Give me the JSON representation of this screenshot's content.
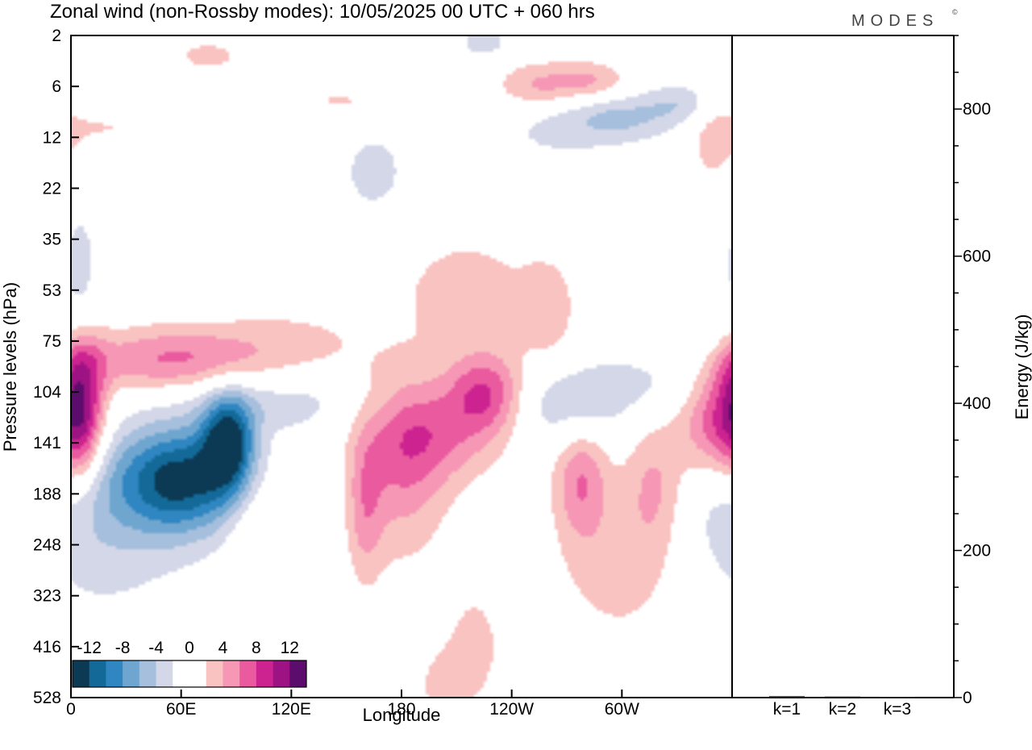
{
  "chart_data": {
    "type": "heatmap",
    "title": "Zonal wind (non-Rossby modes):  10/05/2025  00 UTC  + 060 hrs",
    "brand": "MODES",
    "brand_mark": "©",
    "xlabel": "Longitude",
    "ylabel": "Pressure levels (hPa)",
    "y2label": "Energy (J/kg)",
    "x_ticks": [
      "0",
      "60E",
      "120E",
      "180",
      "120W",
      "60W"
    ],
    "x_tick_degrees": [
      0,
      60,
      120,
      180,
      240,
      300
    ],
    "xlim": [
      0,
      360
    ],
    "y_ticks": [
      "2",
      "6",
      "12",
      "22",
      "35",
      "53",
      "75",
      "104",
      "141",
      "188",
      "248",
      "323",
      "416",
      "528"
    ],
    "y2_ticks": [
      "0",
      "200",
      "400",
      "600",
      "800"
    ],
    "y2_tick_values": [
      0,
      200,
      400,
      600,
      800
    ],
    "y2lim": [
      0,
      900
    ],
    "colorbar": {
      "labels": [
        "-12",
        "-8",
        "-4",
        "0",
        "4",
        "8",
        "12"
      ],
      "colors": [
        "#0c3a55",
        "#136a99",
        "#2f86c0",
        "#6fa6d0",
        "#a5bfdd",
        "#d3d7e8",
        "#ffffff",
        "#ffffff",
        "#f9c3c1",
        "#f597b5",
        "#ea5a9f",
        "#cc2391",
        "#9e1384",
        "#5c0c6c"
      ]
    },
    "energy_bars": {
      "categories": [
        "k=1",
        "k=2",
        "k=3"
      ],
      "values": [
        2,
        1.5,
        0.8
      ]
    },
    "blobs": [
      {
        "lon": 6,
        "lev": 7.4,
        "dlon": 12,
        "dlev": 1.4,
        "amp": 9
      },
      {
        "lon": 40,
        "lev": 6.4,
        "dlon": 90,
        "dlev": 0.6,
        "amp": 3.5
      },
      {
        "lon": 60,
        "lev": 6.3,
        "dlon": 40,
        "dlev": 0.7,
        "amp": 3
      },
      {
        "lon": 120,
        "lev": 5.9,
        "dlon": 40,
        "dlev": 0.6,
        "amp": 2
      },
      {
        "lon": 60,
        "lev": 8.7,
        "dlon": 30,
        "dlev": 1.0,
        "amp": -9
      },
      {
        "lon": 86,
        "lev": 8.0,
        "dlon": 14,
        "dlev": 0.9,
        "amp": -12
      },
      {
        "lon": 40,
        "lev": 8.8,
        "dlon": 70,
        "dlev": 1.2,
        "amp": -4
      },
      {
        "lon": 110,
        "lev": 7.2,
        "dlon": 50,
        "dlev": 0.6,
        "amp": -3
      },
      {
        "lon": 15,
        "lev": 10.0,
        "dlon": 50,
        "dlev": 1.8,
        "amp": -2.5
      },
      {
        "lon": 5,
        "lev": 4.5,
        "dlon": 10,
        "dlev": 1.2,
        "amp": -3
      },
      {
        "lon": 180,
        "lev": 8.5,
        "dlon": 25,
        "dlev": 1.8,
        "amp": 5
      },
      {
        "lon": 200,
        "lev": 7.8,
        "dlon": 35,
        "dlev": 1.0,
        "amp": 5
      },
      {
        "lon": 226,
        "lev": 7.0,
        "dlon": 20,
        "dlev": 0.8,
        "amp": 7
      },
      {
        "lon": 215,
        "lev": 5.0,
        "dlon": 40,
        "dlev": 1.2,
        "amp": 3
      },
      {
        "lon": 260,
        "lev": 5.4,
        "dlon": 15,
        "dlev": 1.0,
        "amp": 3
      },
      {
        "lon": 272,
        "lev": 7.3,
        "dlon": 30,
        "dlev": 0.8,
        "amp": -4
      },
      {
        "lon": 310,
        "lev": 6.7,
        "dlon": 35,
        "dlev": 0.7,
        "amp": -3
      },
      {
        "lon": 340,
        "lev": 6.0,
        "dlon": 20,
        "dlev": 1.0,
        "amp": -3
      },
      {
        "lon": 352,
        "lev": 7.6,
        "dlon": 20,
        "dlev": 1.2,
        "amp": 8
      },
      {
        "lon": 278,
        "lev": 8.7,
        "dlon": 15,
        "dlev": 1.2,
        "amp": 6
      },
      {
        "lon": 318,
        "lev": 8.8,
        "dlon": 18,
        "dlev": 1.3,
        "amp": 5
      },
      {
        "lon": 300,
        "lev": 10.5,
        "dlon": 35,
        "dlev": 1.5,
        "amp": 3
      },
      {
        "lon": 220,
        "lev": 12.0,
        "dlon": 20,
        "dlev": 1.5,
        "amp": 2.5
      },
      {
        "lon": 160,
        "lev": 9.3,
        "dlon": 10,
        "dlev": 1.5,
        "amp": 4
      },
      {
        "lon": 100,
        "lev": 9.5,
        "dlon": 15,
        "dlev": 1.5,
        "amp": 2.5
      },
      {
        "lon": 255,
        "lev": 1.0,
        "dlon": 25,
        "dlev": 0.5,
        "amp": 5
      },
      {
        "lon": 285,
        "lev": 0.9,
        "dlon": 20,
        "dlev": 0.4,
        "amp": 4
      },
      {
        "lon": 300,
        "lev": 1.6,
        "dlon": 35,
        "dlev": 0.5,
        "amp": -4
      },
      {
        "lon": 335,
        "lev": 1.3,
        "dlon": 20,
        "dlev": 0.4,
        "amp": -3
      },
      {
        "lon": 225,
        "lev": 0.1,
        "dlon": 15,
        "dlev": 0.4,
        "amp": -3
      },
      {
        "lon": 150,
        "lev": 1.3,
        "dlon": 30,
        "dlev": 0.4,
        "amp": 2.5
      },
      {
        "lon": 75,
        "lev": 0.4,
        "dlon": 25,
        "dlev": 0.4,
        "amp": 2.5
      },
      {
        "lon": 20,
        "lev": 1.8,
        "dlon": 30,
        "dlev": 0.4,
        "amp": 2
      },
      {
        "lon": 350,
        "lev": 2.0,
        "dlon": 15,
        "dlev": 1.0,
        "amp": 3
      },
      {
        "lon": 165,
        "lev": 2.7,
        "dlon": 25,
        "dlev": 1.2,
        "amp": -2.5
      },
      {
        "lon": 260,
        "lev": 1.8,
        "dlon": 40,
        "dlev": 1.0,
        "amp": -2
      },
      {
        "lon": 200,
        "lev": 12.8,
        "dlon": 15,
        "dlev": 0.8,
        "amp": 2
      }
    ]
  }
}
